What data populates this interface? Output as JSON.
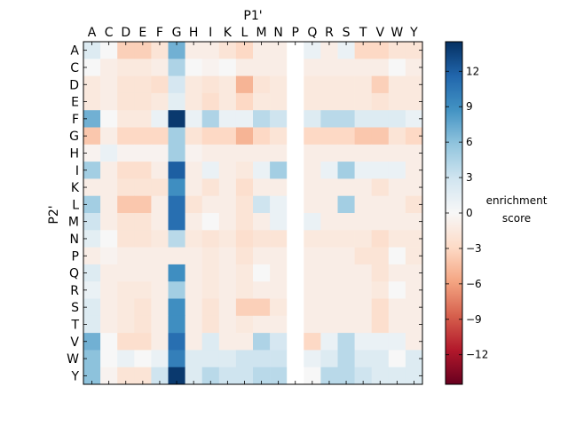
{
  "chart_data": {
    "type": "heatmap",
    "x_title": "P1'",
    "y_title": "P2'",
    "x_labels": [
      "A",
      "C",
      "D",
      "E",
      "F",
      "G",
      "H",
      "I",
      "K",
      "L",
      "M",
      "N",
      "P",
      "Q",
      "R",
      "S",
      "T",
      "V",
      "W",
      "Y"
    ],
    "y_labels": [
      "A",
      "C",
      "D",
      "E",
      "F",
      "G",
      "H",
      "I",
      "K",
      "L",
      "M",
      "N",
      "P",
      "Q",
      "R",
      "S",
      "T",
      "V",
      "W",
      "Y"
    ],
    "colorbar": {
      "label_line1": "enrichment",
      "label_line2": "score",
      "range": [
        -14.5,
        14.5
      ],
      "ticks": [
        12,
        9,
        6,
        3,
        0,
        -3,
        -6,
        -9,
        -12
      ],
      "tick_labels": [
        "12",
        "9",
        "6",
        "3",
        "0",
        "−3",
        "−6",
        "−9",
        "−12"
      ],
      "colormap": "RdBu"
    },
    "missing_columns": [
      "P"
    ],
    "values": [
      [
        2,
        0,
        -3.5,
        -3.5,
        -2,
        7,
        -1,
        -1,
        -2,
        -3,
        -1,
        -1,
        null,
        1,
        -1,
        1,
        -3,
        -3,
        -2,
        -2
      ],
      [
        0,
        -1,
        -1.5,
        -1.5,
        -1,
        4.5,
        0,
        -0.5,
        0,
        -1,
        -1,
        -1,
        null,
        -1,
        -1,
        -1,
        -1,
        -1,
        0,
        -1
      ],
      [
        -1.5,
        -1,
        -2,
        -2,
        -2.5,
        2.5,
        -1.5,
        -2,
        -1.5,
        -5,
        -2,
        -1.5,
        null,
        -1.5,
        -1.5,
        -1.5,
        -1.5,
        -3.5,
        -1.5,
        -1.5
      ],
      [
        -1.5,
        -1,
        -2,
        -2,
        -1.5,
        1.5,
        -1.5,
        -2.5,
        -1.5,
        -3,
        -1.5,
        -1.5,
        null,
        -1.5,
        -1.5,
        -1.5,
        -1.5,
        -2,
        -1.5,
        -1.5
      ],
      [
        7,
        0,
        -1.5,
        -1.5,
        1,
        14,
        1,
        4.5,
        1,
        1,
        4,
        3,
        null,
        2,
        4,
        4,
        2,
        2,
        2,
        1
      ],
      [
        -4,
        -1,
        -3,
        -3,
        -3,
        5,
        -2,
        -3,
        -3,
        -5,
        -3,
        -2,
        null,
        -3,
        -3,
        -3,
        -4,
        -4,
        -2,
        -3
      ],
      [
        -0.5,
        1,
        -0.5,
        -0.5,
        -0.5,
        5,
        -0.5,
        -1,
        -1,
        -1,
        -1,
        -1,
        null,
        -1,
        -1,
        -1,
        -1,
        -1,
        -1,
        -1
      ],
      [
        5,
        -1,
        -2.5,
        -2.5,
        -1,
        12,
        -1,
        1,
        -1,
        -1.5,
        1,
        5,
        null,
        -1,
        1,
        5,
        1,
        1,
        1,
        -1
      ],
      [
        -1,
        -1,
        -2,
        -2,
        -2,
        9,
        -1,
        -2,
        -1,
        -2.5,
        -1,
        -1,
        null,
        -1,
        -1,
        -1,
        -1,
        -2,
        -1,
        -1
      ],
      [
        5,
        -1,
        -4,
        -4,
        -1,
        11,
        -2,
        -1,
        -1,
        -2,
        3,
        1,
        null,
        -1,
        -1,
        5,
        -1,
        -1,
        -1,
        -2
      ],
      [
        3,
        -1,
        -2,
        -2,
        -1,
        11,
        -1,
        0,
        -1,
        -2,
        -1,
        1,
        null,
        1,
        -1,
        -1,
        -1,
        -1,
        -1,
        -1
      ],
      [
        1.5,
        0,
        -2,
        -2,
        -1.5,
        4,
        -1.5,
        -2,
        -1.5,
        -2.5,
        -2,
        -2,
        null,
        -1.5,
        -1.5,
        -1.5,
        -1.5,
        -2.5,
        -1.5,
        -1.5
      ],
      [
        -1,
        -0.5,
        -1,
        -1,
        -1,
        -1,
        -1,
        -1.5,
        -1,
        -2,
        -1,
        -1,
        null,
        -1,
        -1,
        -1,
        -2,
        -2,
        0,
        -1.5
      ],
      [
        2,
        -1,
        -1,
        -1,
        -1,
        9,
        -1,
        -1.5,
        -1,
        -1.5,
        0,
        -1,
        null,
        -1,
        -1,
        -1,
        -1,
        -2,
        -1,
        -1
      ],
      [
        1,
        -1,
        -1.5,
        -1.5,
        -1,
        5,
        -1,
        -1.5,
        -1,
        -1.5,
        -1,
        -1,
        null,
        -1,
        -1,
        -1,
        -1,
        -1.5,
        0,
        -1
      ],
      [
        2,
        -1,
        -1.5,
        -2,
        -1,
        9,
        -1,
        -2,
        -1,
        -3.5,
        -3.5,
        -1.5,
        null,
        -1,
        -1,
        -1,
        -1,
        -2.5,
        -1,
        -1
      ],
      [
        2,
        -1,
        -1.5,
        -2,
        -1,
        9,
        -1,
        -2,
        -1,
        -1.5,
        -1,
        -1,
        null,
        -1,
        -1,
        -1,
        -1,
        -2.5,
        -1,
        -1
      ],
      [
        7,
        0,
        -2.5,
        -2.5,
        -1,
        11,
        -1,
        2,
        -1,
        -1,
        4.5,
        2.5,
        null,
        -3,
        1,
        4,
        1,
        1,
        1,
        -1
      ],
      [
        6,
        0,
        1,
        0,
        1,
        10,
        2,
        2,
        2,
        3,
        3,
        3,
        null,
        1,
        2,
        4,
        2,
        2,
        0,
        2
      ],
      [
        6,
        -0.5,
        -2,
        -2,
        3,
        14,
        2,
        4,
        3,
        3,
        4,
        4,
        null,
        0,
        4,
        4,
        3,
        2,
        2,
        2
      ]
    ]
  }
}
